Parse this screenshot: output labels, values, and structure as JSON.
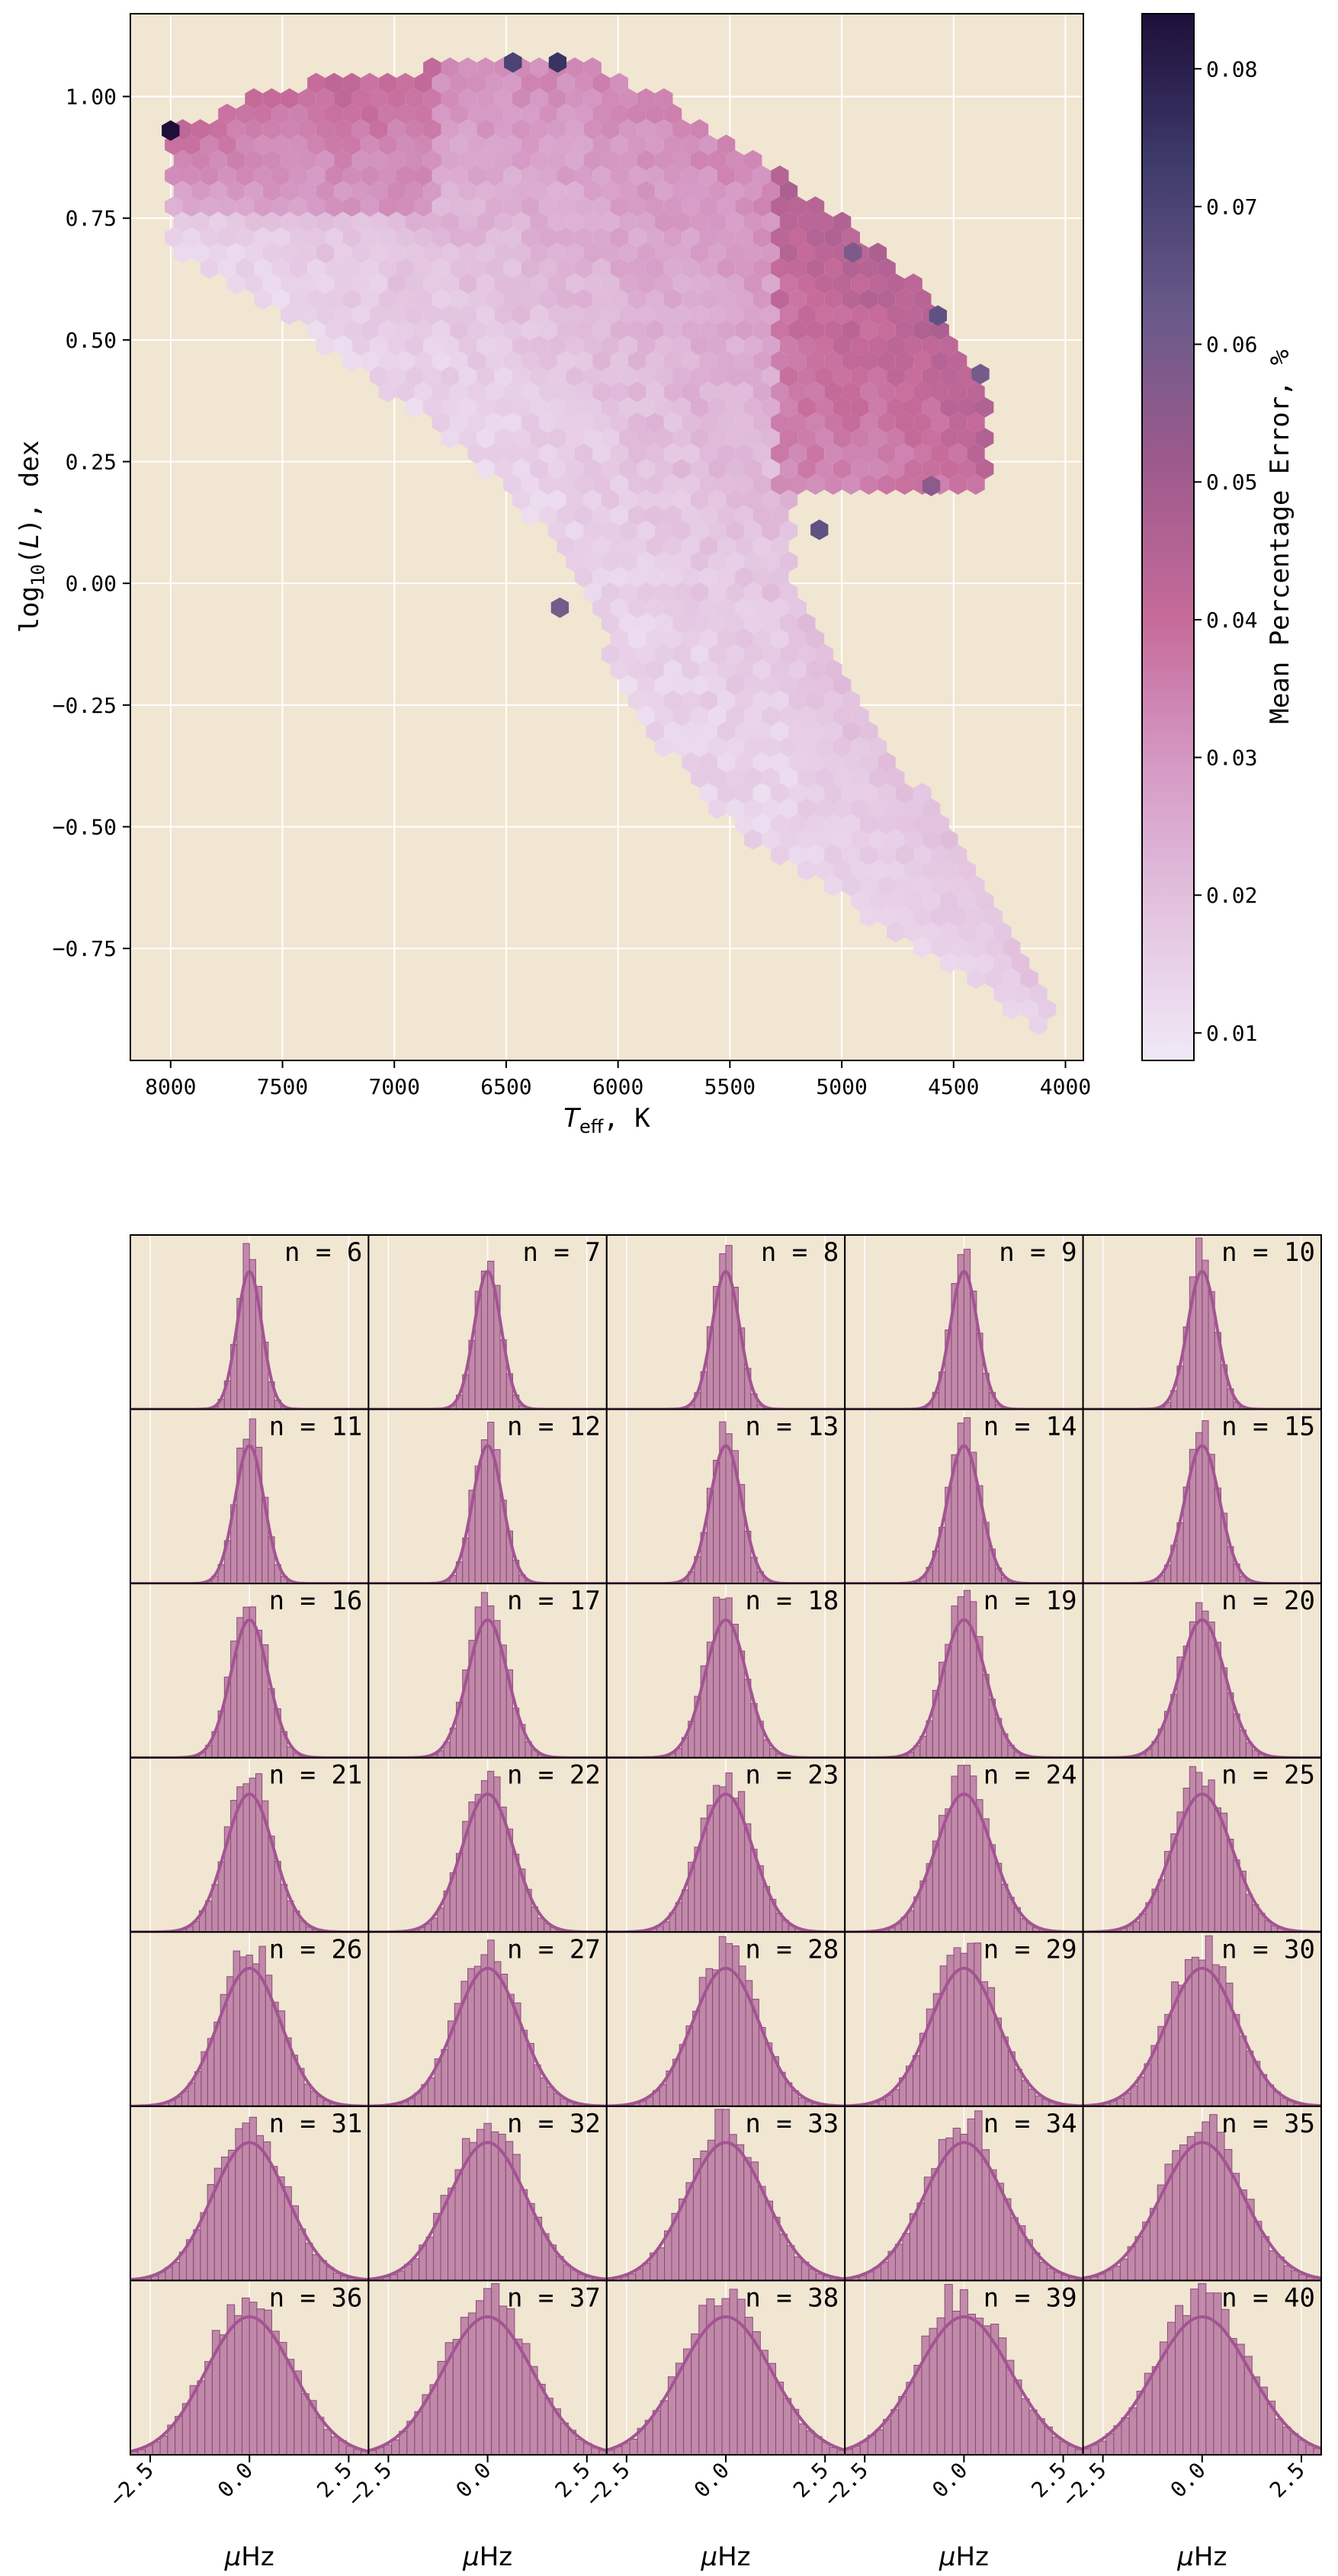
{
  "colors": {
    "background": "#f0e6d2",
    "grid": "#ffffff",
    "hist_bar": "#b16a9a",
    "hist_curve": "#a35492",
    "colormap": [
      "#f1e9f7",
      "#e3c4e0",
      "#d59ac5",
      "#c66b9a",
      "#9d5a8c",
      "#6a5a8a",
      "#3d3a6a",
      "#1e0f3a"
    ]
  },
  "chart_data": [
    {
      "type": "heatmap",
      "subtype": "hexbin",
      "xlabel": "T_eff, K",
      "xlabel_main": "T",
      "xlabel_sub": "eff",
      "xlabel_suffix": ", K",
      "ylabel": "log10(L), dex",
      "ylabel_prefix": "log",
      "ylabel_sub": "10",
      "ylabel_mid": "(",
      "ylabel_var": "L",
      "ylabel_suffix": "), dex",
      "xlim": [
        8180,
        3920
      ],
      "ylim": [
        -0.98,
        1.17
      ],
      "x_inverted": true,
      "xticks": [
        8000,
        7500,
        7000,
        6500,
        6000,
        5500,
        5000,
        4500,
        4000
      ],
      "xtick_labels": [
        "8000",
        "7500",
        "7000",
        "6500",
        "6000",
        "5500",
        "5000",
        "4500",
        "4000"
      ],
      "yticks": [
        -0.75,
        -0.5,
        -0.25,
        0.0,
        0.25,
        0.5,
        0.75,
        1.0
      ],
      "ytick_labels": [
        "−0.75",
        "−0.50",
        "−0.25",
        "0.00",
        "0.25",
        "0.50",
        "0.75",
        "1.00"
      ],
      "grid": true,
      "colorbar": {
        "label": "Mean Percentage Error, %",
        "range": [
          0.008,
          0.084
        ],
        "ticks": [
          0.01,
          0.02,
          0.03,
          0.04,
          0.05,
          0.06,
          0.07,
          0.08
        ],
        "tick_labels": [
          "0.01",
          "0.02",
          "0.03",
          "0.04",
          "0.05",
          "0.06",
          "0.07",
          "0.08"
        ]
      },
      "region": {
        "upper_branch": [
          [
            8000,
            0.92
          ],
          [
            7500,
            1.0
          ],
          [
            7000,
            1.04
          ],
          [
            6500,
            1.07
          ],
          [
            6200,
            1.07
          ],
          [
            5800,
            1.0
          ],
          [
            5200,
            0.8
          ],
          [
            4600,
            0.58
          ],
          [
            4380,
            0.4
          ],
          [
            4500,
            0.2
          ],
          [
            5200,
            0.18
          ],
          [
            5200,
            0.05
          ],
          [
            5300,
            -0.05
          ]
        ],
        "lower_edge": [
          [
            8000,
            0.68
          ],
          [
            7500,
            0.55
          ],
          [
            7000,
            0.38
          ],
          [
            6500,
            0.2
          ],
          [
            6200,
            0.05
          ],
          [
            5900,
            -0.25
          ],
          [
            5500,
            -0.45
          ],
          [
            5000,
            -0.58
          ],
          [
            4500,
            -0.75
          ],
          [
            4100,
            -0.9
          ],
          [
            4200,
            -0.82
          ],
          [
            4600,
            -0.55
          ],
          [
            5000,
            -0.35
          ]
        ],
        "high_error_cells": [
          [
            8000,
            0.93,
            0.084
          ],
          [
            6270,
            1.07,
            0.075
          ],
          [
            6470,
            1.07,
            0.07
          ],
          [
            4570,
            0.55,
            0.065
          ],
          [
            4380,
            0.43,
            0.06
          ],
          [
            5100,
            0.11,
            0.065
          ],
          [
            6260,
            -0.05,
            0.06
          ],
          [
            4950,
            0.68,
            0.058
          ],
          [
            4600,
            0.2,
            0.055
          ]
        ]
      }
    },
    {
      "type": "histogram_grid",
      "rows": 7,
      "cols": 5,
      "xlabel": "μHz",
      "xlabel_unit": "Hz",
      "xlabel_prefix": "μ",
      "xlim": [
        -3.0,
        3.0
      ],
      "xticks": [
        -2.5,
        0.0,
        2.5
      ],
      "xtick_labels": [
        "−2.5",
        "0.0",
        "2.5"
      ],
      "bins_per_panel": 24,
      "label_prefix": "n = ",
      "panels": [
        {
          "n": 6,
          "sigma": 0.3
        },
        {
          "n": 7,
          "sigma": 0.32
        },
        {
          "n": 8,
          "sigma": 0.33
        },
        {
          "n": 9,
          "sigma": 0.33
        },
        {
          "n": 10,
          "sigma": 0.35
        },
        {
          "n": 11,
          "sigma": 0.35
        },
        {
          "n": 12,
          "sigma": 0.36
        },
        {
          "n": 13,
          "sigma": 0.38
        },
        {
          "n": 14,
          "sigma": 0.4
        },
        {
          "n": 15,
          "sigma": 0.42
        },
        {
          "n": 16,
          "sigma": 0.45
        },
        {
          "n": 17,
          "sigma": 0.48
        },
        {
          "n": 18,
          "sigma": 0.5
        },
        {
          "n": 19,
          "sigma": 0.52
        },
        {
          "n": 20,
          "sigma": 0.55
        },
        {
          "n": 21,
          "sigma": 0.58
        },
        {
          "n": 22,
          "sigma": 0.62
        },
        {
          "n": 23,
          "sigma": 0.65
        },
        {
          "n": 24,
          "sigma": 0.68
        },
        {
          "n": 25,
          "sigma": 0.72
        },
        {
          "n": 26,
          "sigma": 0.75
        },
        {
          "n": 27,
          "sigma": 0.78
        },
        {
          "n": 28,
          "sigma": 0.8
        },
        {
          "n": 29,
          "sigma": 0.82
        },
        {
          "n": 30,
          "sigma": 0.85
        },
        {
          "n": 31,
          "sigma": 0.9
        },
        {
          "n": 32,
          "sigma": 0.93
        },
        {
          "n": 33,
          "sigma": 0.95
        },
        {
          "n": 34,
          "sigma": 0.97
        },
        {
          "n": 35,
          "sigma": 1.0
        },
        {
          "n": 36,
          "sigma": 1.05
        },
        {
          "n": 37,
          "sigma": 1.08
        },
        {
          "n": 38,
          "sigma": 1.1
        },
        {
          "n": 39,
          "sigma": 1.12
        },
        {
          "n": 40,
          "sigma": 1.15
        }
      ]
    }
  ]
}
